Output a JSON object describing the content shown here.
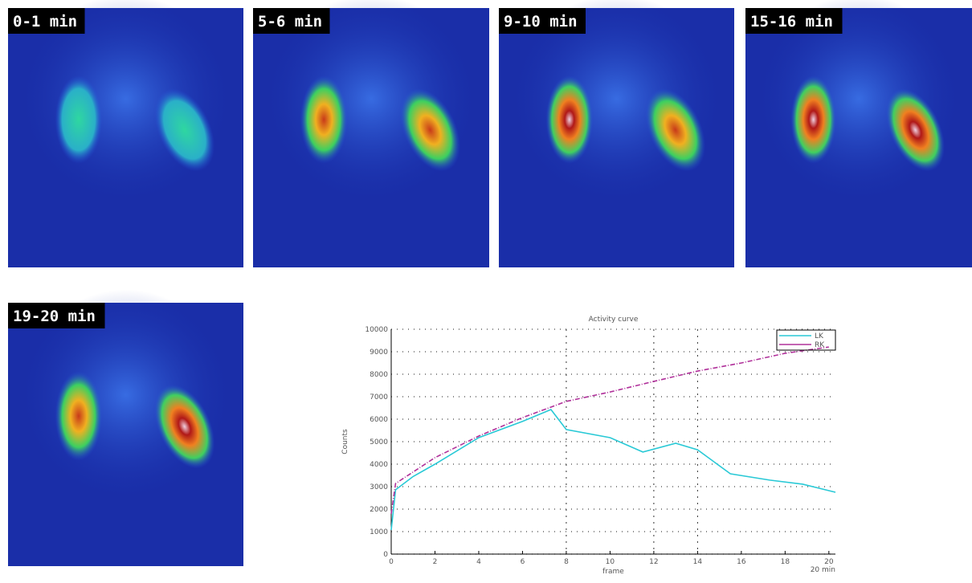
{
  "panels": [
    {
      "label": "0-1 min"
    },
    {
      "label": "5-6 min"
    },
    {
      "label": "9-10 min"
    },
    {
      "label": "15-16 min"
    },
    {
      "label": "19-20 min"
    }
  ],
  "chart_data": {
    "type": "line",
    "title": "Activity curve",
    "x_label": "frame",
    "y_label": "Counts",
    "annotation": "20 min",
    "xlim": [
      0,
      20.3
    ],
    "ylim": [
      0,
      10000
    ],
    "xticks": [
      0,
      2,
      4,
      6,
      8,
      10,
      12,
      14,
      16,
      18,
      20
    ],
    "yticks": [
      0,
      1000,
      2000,
      3000,
      4000,
      5000,
      6000,
      7000,
      8000,
      9000,
      10000
    ],
    "markers": [
      8,
      12,
      14
    ],
    "grid": true,
    "legend": "upper right",
    "series": [
      {
        "name": "LK",
        "color": "#29c9d6",
        "x": [
          0,
          0.2,
          1,
          2,
          4,
          6,
          7.3,
          8,
          10,
          11.5,
          13,
          14,
          15.5,
          17.3,
          18.8,
          20.3
        ],
        "values": [
          1070,
          2860,
          3450,
          4000,
          5180,
          5900,
          6430,
          5540,
          5180,
          4540,
          4930,
          4640,
          3570,
          3290,
          3110,
          2750
        ]
      },
      {
        "name": "RK",
        "color": "#b0309a",
        "x": [
          0,
          0.2,
          2,
          4,
          6,
          8,
          10,
          12,
          14,
          16,
          18,
          20
        ],
        "values": [
          1790,
          3140,
          4290,
          5250,
          6070,
          6790,
          7210,
          7680,
          8140,
          8500,
          8930,
          9210
        ]
      }
    ]
  }
}
